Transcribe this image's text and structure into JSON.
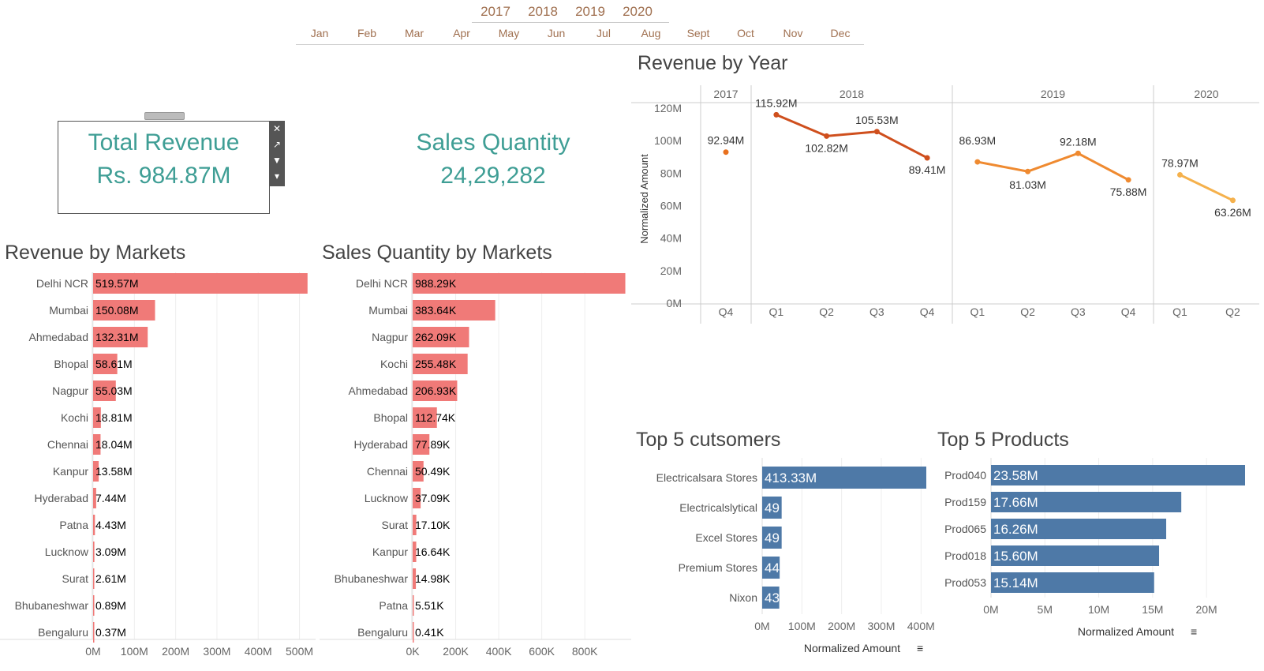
{
  "filters": {
    "years": [
      "2017",
      "2018",
      "2019",
      "2020"
    ],
    "months": [
      "Jan",
      "Feb",
      "Mar",
      "Apr",
      "May",
      "Jun",
      "Jul",
      "Aug",
      "Sept",
      "Oct",
      "Nov",
      "Dec"
    ]
  },
  "kpis": {
    "revenue_title": "Total Revenue",
    "revenue_value": "Rs. 984.87M",
    "quantity_title": "Sales Quantity",
    "quantity_value": "24,29,282"
  },
  "toolbar_icons": [
    "close-icon",
    "popout-icon",
    "filter-icon",
    "more-icon"
  ],
  "chart_data": [
    {
      "type": "bar",
      "title": "Revenue by Markets",
      "categories": [
        "Delhi NCR",
        "Mumbai",
        "Ahmedabad",
        "Bhopal",
        "Nagpur",
        "Kochi",
        "Chennai",
        "Kanpur",
        "Hyderabad",
        "Patna",
        "Lucknow",
        "Surat",
        "Bhubaneshwar",
        "Bengaluru"
      ],
      "values": [
        519.57,
        150.08,
        132.31,
        58.61,
        55.03,
        18.81,
        18.04,
        13.58,
        7.44,
        4.43,
        3.09,
        2.61,
        0.89,
        0.37
      ],
      "labels": [
        "519.57M",
        "150.08M",
        "132.31M",
        "58.61M",
        "55.03M",
        "18.81M",
        "18.04M",
        "13.58M",
        "7.44M",
        "4.43M",
        "3.09M",
        "2.61M",
        "0.89M",
        "0.37M"
      ],
      "xticks": [
        "0M",
        "100M",
        "200M",
        "300M",
        "400M",
        "500M"
      ],
      "xlim": [
        0,
        520
      ],
      "color": "#f07a78"
    },
    {
      "type": "bar",
      "title": "Sales Quantity by Markets",
      "categories": [
        "Delhi NCR",
        "Mumbai",
        "Nagpur",
        "Kochi",
        "Ahmedabad",
        "Bhopal",
        "Hyderabad",
        "Chennai",
        "Lucknow",
        "Surat",
        "Kanpur",
        "Bhubaneshwar",
        "Patna",
        "Bengaluru"
      ],
      "values": [
        988.29,
        383.64,
        262.09,
        255.48,
        206.93,
        112.74,
        77.89,
        50.49,
        37.09,
        17.1,
        16.64,
        14.98,
        5.51,
        0.41
      ],
      "labels": [
        "988.29K",
        "383.64K",
        "262.09K",
        "255.48K",
        "206.93K",
        "112.74K",
        "77.89K",
        "50.49K",
        "37.09K",
        "17.10K",
        "16.64K",
        "14.98K",
        "5.51K",
        "0.41K"
      ],
      "xticks": [
        "0K",
        "200K",
        "400K",
        "600K",
        "800K"
      ],
      "xlim": [
        0,
        990
      ],
      "color": "#f07a78"
    },
    {
      "type": "line",
      "title": "Revenue by Year",
      "ylabel": "Normalized Amount",
      "years": [
        {
          "year": "2017",
          "quarters": [
            "Q4"
          ],
          "values": [
            92.94
          ],
          "labels": [
            "92.94M"
          ],
          "color": "#e8701e"
        },
        {
          "year": "2018",
          "quarters": [
            "Q1",
            "Q2",
            "Q3",
            "Q4"
          ],
          "values": [
            115.92,
            102.82,
            105.53,
            89.41
          ],
          "labels": [
            "115.92M",
            "102.82M",
            "105.53M",
            "89.41M"
          ],
          "color": "#cf4f1d"
        },
        {
          "year": "2019",
          "quarters": [
            "Q1",
            "Q2",
            "Q3",
            "Q4"
          ],
          "values": [
            86.93,
            81.03,
            92.18,
            75.88
          ],
          "labels": [
            "86.93M",
            "81.03M",
            "92.18M",
            "75.88M"
          ],
          "color": "#ef8a30"
        },
        {
          "year": "2020",
          "quarters": [
            "Q1",
            "Q2"
          ],
          "values": [
            78.97,
            63.26
          ],
          "labels": [
            "78.97M",
            "63.26M"
          ],
          "color": "#f5b14c"
        }
      ],
      "yticks": [
        "0M",
        "20M",
        "40M",
        "60M",
        "80M",
        "100M",
        "120M"
      ],
      "ylim": [
        0,
        120
      ]
    },
    {
      "type": "bar",
      "title": "Top 5 cutsomers",
      "categories": [
        "Electricalsara Stores",
        "Electricalslytical",
        "Excel Stores",
        "Premium Stores",
        "Nixon"
      ],
      "values": [
        413.33,
        49,
        49,
        44,
        43
      ],
      "labels": [
        "413.33M",
        "49",
        "49",
        "44",
        "43"
      ],
      "xticks": [
        "0M",
        "100M",
        "200M",
        "300M",
        "400M"
      ],
      "xlim": [
        0,
        413.33
      ],
      "xlabel": "Normalized Amount",
      "color": "#4e79a7"
    },
    {
      "type": "bar",
      "title": "Top 5 Products",
      "categories": [
        "Prod040",
        "Prod159",
        "Prod065",
        "Prod018",
        "Prod053"
      ],
      "values": [
        23.58,
        17.66,
        16.26,
        15.6,
        15.14
      ],
      "labels": [
        "23.58M",
        "17.66M",
        "16.26M",
        "15.60M",
        "15.14M"
      ],
      "xticks": [
        "0M",
        "5M",
        "10M",
        "15M",
        "20M"
      ],
      "xlim": [
        0,
        23.58
      ],
      "xlabel": "Normalized Amount",
      "color": "#4e79a7"
    }
  ]
}
